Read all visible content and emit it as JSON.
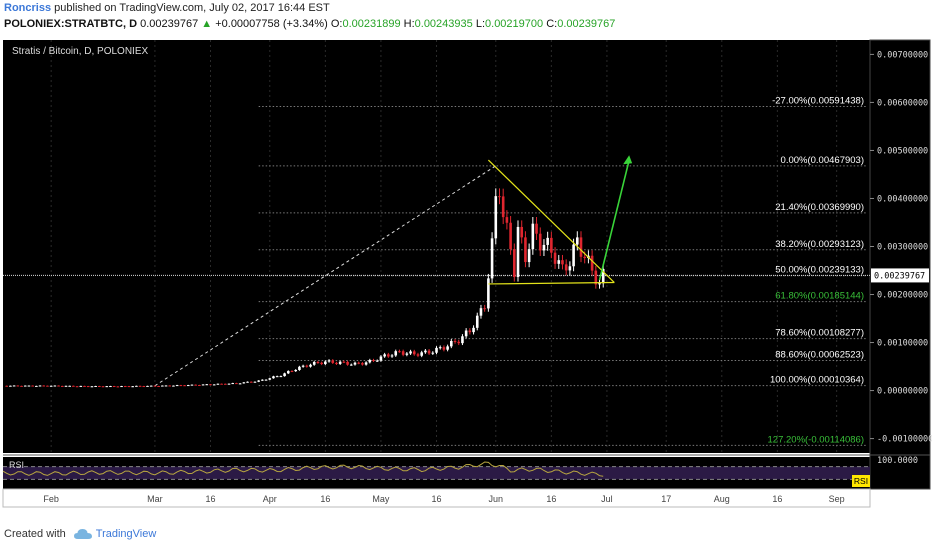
{
  "header": {
    "author": "Roncriss",
    "published": "published on TradingView.com, July 02, 2017 16:44 EST",
    "symbol": "POLONIEX:STRATBTC, D",
    "last": "0.00239767",
    "change": "+0.00007758 (+3.34%)",
    "o_label": "O:",
    "o_value": "0.00231899",
    "h_label": "H:",
    "h_value": "0.00243935",
    "l_label": "L:",
    "l_value": "0.00219700",
    "c_label": "C:",
    "c_value": "0.00239767"
  },
  "colors": {
    "background": "#000000",
    "grid": "#2a2a2a",
    "candle_up": "#ffffff",
    "candle_down": "#e0262f",
    "fib_line": "#7a7a7a",
    "fib_text": "#ffffff",
    "fib_highlight": "#39c039",
    "triangle": "#e3e31a",
    "arrow": "#39d439",
    "rsi_line": "#b8a640",
    "rsi_band": "#2b1a45",
    "rsi_badge": "#ffe600"
  },
  "chart_data": {
    "type": "candlestick",
    "title": "Stratis / Bitcoin, D, POLONIEX",
    "y_axis_labels": [
      "0.00700000",
      "0.00600000",
      "0.00500000",
      "0.00400000",
      "0.00300000",
      "0.00200000",
      "0.00100000",
      "0.00000000",
      "-0.00100000"
    ],
    "y_axis_values": [
      0.007,
      0.006,
      0.005,
      0.004,
      0.003,
      0.002,
      0.001,
      0.0,
      -0.001
    ],
    "ylim": [
      -0.0013,
      0.0073
    ],
    "current_price_label": "0.00239767",
    "current_price": 0.00239767,
    "x_tick_labels": [
      "Feb",
      "Mar",
      "16",
      "Apr",
      "16",
      "May",
      "16",
      "Jun",
      "16",
      "Jul",
      "17",
      "Aug",
      "16",
      "Sep"
    ],
    "x_tick_days": [
      0,
      28,
      43,
      59,
      74,
      89,
      104,
      120,
      135,
      150,
      166,
      181,
      196,
      212
    ],
    "xlim_days": [
      -13,
      221
    ],
    "fib_levels": [
      {
        "label": "-27.00%(0.00591438)",
        "value": 0.00591438
      },
      {
        "label": "0.00%(0.00467903)",
        "value": 0.00467903
      },
      {
        "label": "21.40%(0.00369990)",
        "value": 0.0036999
      },
      {
        "label": "38.20%(0.00293123)",
        "value": 0.00293123
      },
      {
        "label": "50.00%(0.00239133)",
        "value": 0.00239133
      },
      {
        "label": "61.80%(0.00185144)",
        "value": 0.00185144,
        "highlight": true
      },
      {
        "label": "78.60%(0.00108277)",
        "value": 0.00108277
      },
      {
        "label": "88.60%(0.00062523)",
        "value": 0.00062523
      },
      {
        "label": "100.00%(0.00010364)",
        "value": 0.00010364
      },
      {
        "label": "127.20%(-0.00114086)",
        "value": -0.00114086,
        "highlight": true
      }
    ],
    "price_series": [
      [
        -13,
        0.0001
      ],
      [
        0,
        0.0001
      ],
      [
        10,
        9e-05
      ],
      [
        20,
        9e-05
      ],
      [
        30,
        0.0001
      ],
      [
        40,
        0.00012
      ],
      [
        50,
        0.00015
      ],
      [
        56,
        0.0002
      ],
      [
        62,
        0.00032
      ],
      [
        66,
        0.00045
      ],
      [
        70,
        0.00055
      ],
      [
        74,
        0.0006
      ],
      [
        78,
        0.00058
      ],
      [
        82,
        0.00055
      ],
      [
        86,
        0.0006
      ],
      [
        90,
        0.00072
      ],
      [
        94,
        0.0008
      ],
      [
        98,
        0.00076
      ],
      [
        102,
        0.0008
      ],
      [
        106,
        0.0009
      ],
      [
        110,
        0.00105
      ],
      [
        113,
        0.00125
      ],
      [
        115,
        0.0015
      ],
      [
        117,
        0.0018
      ],
      [
        118,
        0.0024
      ],
      [
        119,
        0.003
      ],
      [
        120,
        0.004
      ],
      [
        121,
        0.0043
      ],
      [
        122,
        0.0036
      ],
      [
        123,
        0.0033
      ],
      [
        124,
        0.003
      ],
      [
        125,
        0.0025
      ],
      [
        126,
        0.0033
      ],
      [
        128,
        0.0028
      ],
      [
        130,
        0.0033
      ],
      [
        132,
        0.0031
      ],
      [
        134,
        0.003
      ],
      [
        136,
        0.0028
      ],
      [
        138,
        0.0025
      ],
      [
        140,
        0.0027
      ],
      [
        142,
        0.0031
      ],
      [
        144,
        0.0028
      ],
      [
        146,
        0.0025
      ],
      [
        148,
        0.0022
      ],
      [
        149,
        0.0024
      ]
    ],
    "rsi": {
      "label": "RSI",
      "y_axis_label": "100.0000",
      "upper": 70,
      "lower": 30,
      "values": [
        [
          -13,
          50
        ],
        [
          0,
          48
        ],
        [
          15,
          52
        ],
        [
          28,
          50
        ],
        [
          40,
          54
        ],
        [
          50,
          60
        ],
        [
          60,
          58
        ],
        [
          70,
          66
        ],
        [
          80,
          70
        ],
        [
          90,
          64
        ],
        [
          100,
          60
        ],
        [
          110,
          68
        ],
        [
          118,
          80
        ],
        [
          121,
          72
        ],
        [
          124,
          58
        ],
        [
          130,
          62
        ],
        [
          136,
          55
        ],
        [
          142,
          50
        ],
        [
          149,
          45
        ]
      ]
    }
  },
  "footer": {
    "created_with": "Created with",
    "brand": "TradingView"
  }
}
